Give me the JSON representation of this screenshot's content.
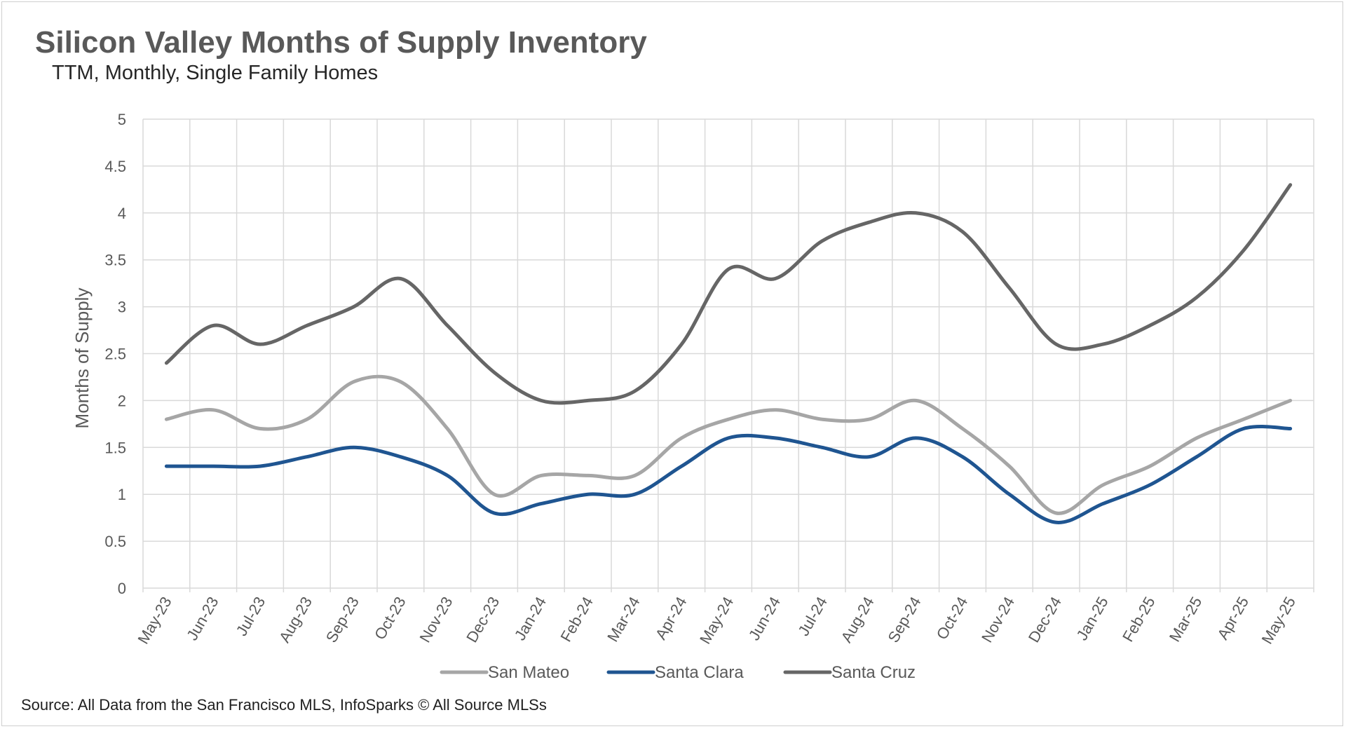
{
  "title": "Silicon Valley Months of Supply Inventory",
  "subtitle": "TTM, Monthly, Single Family Homes",
  "source": "Source: All Data from the San Francisco MLS, InfoSparks © All Source MLSs",
  "chart_data": {
    "type": "line",
    "ylabel": "Months of Supply",
    "ylim": [
      0,
      5
    ],
    "yticks": [
      "0",
      "0.5",
      "1",
      "1.5",
      "2",
      "2.5",
      "3",
      "3.5",
      "4",
      "4.5",
      "5"
    ],
    "grid": true,
    "legend_position": "bottom",
    "categories": [
      "May-23",
      "Jun-23",
      "Jul-23",
      "Aug-23",
      "Sep-23",
      "Oct-23",
      "Nov-23",
      "Dec-23",
      "Jan-24",
      "Feb-24",
      "Mar-24",
      "Apr-24",
      "May-24",
      "Jun-24",
      "Jul-24",
      "Aug-24",
      "Sep-24",
      "Oct-24",
      "Nov-24",
      "Dec-24",
      "Jan-25",
      "Feb-25",
      "Mar-25",
      "Apr-25",
      "May-25"
    ],
    "series": [
      {
        "name": "San Mateo",
        "color": "#a6a6a6",
        "values": [
          1.8,
          1.9,
          1.7,
          1.8,
          2.2,
          2.2,
          1.7,
          1.0,
          1.2,
          1.2,
          1.2,
          1.6,
          1.8,
          1.9,
          1.8,
          1.8,
          2.0,
          1.7,
          1.3,
          0.8,
          1.1,
          1.3,
          1.6,
          1.8,
          2.0
        ]
      },
      {
        "name": "Santa Clara",
        "color": "#1f5591",
        "values": [
          1.3,
          1.3,
          1.3,
          1.4,
          1.5,
          1.4,
          1.2,
          0.8,
          0.9,
          1.0,
          1.0,
          1.3,
          1.6,
          1.6,
          1.5,
          1.4,
          1.6,
          1.4,
          1.0,
          0.7,
          0.9,
          1.1,
          1.4,
          1.7,
          1.7
        ]
      },
      {
        "name": "Santa Cruz",
        "color": "#666666",
        "values": [
          2.4,
          2.8,
          2.6,
          2.8,
          3.0,
          3.3,
          2.8,
          2.3,
          2.0,
          2.0,
          2.1,
          2.6,
          3.4,
          3.3,
          3.7,
          3.9,
          4.0,
          3.8,
          3.2,
          2.6,
          2.6,
          2.8,
          3.1,
          3.6,
          4.3
        ]
      }
    ]
  }
}
